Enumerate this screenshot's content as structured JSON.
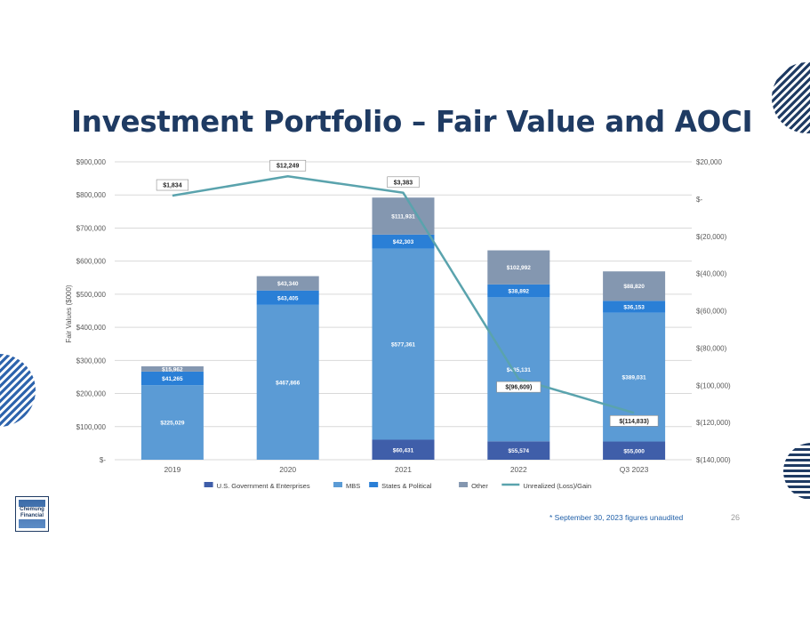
{
  "title": "Investment Portfolio – Fair Value and AOCI",
  "footnote": "* September 30, 2023 figures unaudited",
  "page_number": "26",
  "logo": {
    "text": "Chemung Financial"
  },
  "colors": {
    "title": "#1f3b63",
    "us_gov": "#3f5ea9",
    "mbs": "#5b9bd5",
    "states": "#2a7fd6",
    "other": "#8497b0",
    "line": "#5aa3ad"
  },
  "chart_data": {
    "type": "bar",
    "stacked": true,
    "categories": [
      "2019",
      "2020",
      "2021",
      "2022",
      "Q3 2023"
    ],
    "ylabel": "Fair Values ($000)",
    "ylim": [
      0,
      900000
    ],
    "y_ticks": [
      {
        "value": 900000,
        "label": "$900,000"
      },
      {
        "value": 800000,
        "label": "$800,000"
      },
      {
        "value": 700000,
        "label": "$700,000"
      },
      {
        "value": 600000,
        "label": "$600,000"
      },
      {
        "value": 500000,
        "label": "$500,000"
      },
      {
        "value": 400000,
        "label": "$400,000"
      },
      {
        "value": 300000,
        "label": "$300,000"
      },
      {
        "value": 200000,
        "label": "$200,000"
      },
      {
        "value": 100000,
        "label": "$100,000"
      },
      {
        "value": 0,
        "label": "$-"
      }
    ],
    "y2lim": [
      -140000,
      20000
    ],
    "y2_ticks": [
      {
        "value": 20000,
        "label": "$20,000"
      },
      {
        "value": 0,
        "label": "$-"
      },
      {
        "value": -20000,
        "label": "$(20,000)"
      },
      {
        "value": -40000,
        "label": "$(40,000)"
      },
      {
        "value": -60000,
        "label": "$(60,000)"
      },
      {
        "value": -80000,
        "label": "$(80,000)"
      },
      {
        "value": -100000,
        "label": "$(100,000)"
      },
      {
        "value": -120000,
        "label": "$(120,000)"
      },
      {
        "value": -140000,
        "label": "$(140,000)"
      }
    ],
    "grid": true,
    "legend": "bottom",
    "series": [
      {
        "name": "U.S. Government & Enterprises",
        "color": "#3f5ea9",
        "values": [
          0,
          0,
          60431,
          55574,
          55000
        ],
        "labels": [
          "",
          "",
          "$60,431",
          "$55,574",
          "$55,000"
        ]
      },
      {
        "name": "MBS",
        "color": "#5b9bd5",
        "values": [
          225029,
          467866,
          577361,
          435131,
          389031
        ],
        "labels": [
          "$225,029",
          "$467,866",
          "$577,361",
          "$435,131",
          "$389,031"
        ]
      },
      {
        "name": "States & Political",
        "color": "#2a7fd6",
        "values": [
          41265,
          43405,
          42303,
          38892,
          36153
        ],
        "labels": [
          "$41,265",
          "$43,405",
          "$42,303",
          "$38,892",
          "$36,153"
        ]
      },
      {
        "name": "Other",
        "color": "#8497b0",
        "values": [
          15962,
          43340,
          111931,
          102992,
          88820
        ],
        "labels": [
          "$15,962",
          "$43,340",
          "$111,931",
          "$102,992",
          "$88,820"
        ]
      }
    ],
    "line_series": {
      "name": "Unrealized (Loss)/Gain",
      "axis": "right",
      "color": "#5aa3ad",
      "values": [
        1834,
        12249,
        3383,
        -96609,
        -114833
      ],
      "labels": [
        "$1,834",
        "$12,249",
        "$3,383",
        "$(96,609)",
        "$(114,833)"
      ]
    }
  }
}
